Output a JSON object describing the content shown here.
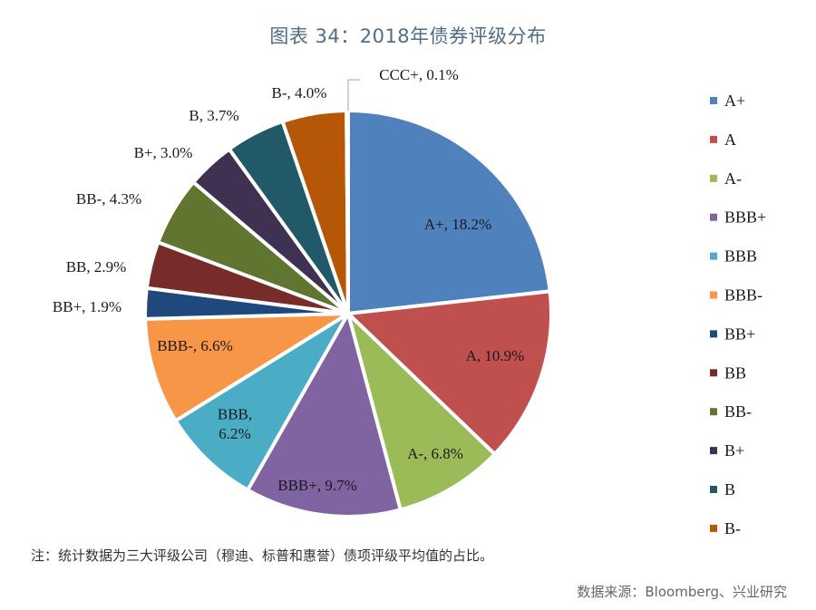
{
  "title": "图表 34：2018年债券评级分布",
  "note": "注：统计数据为三大评级公司（穆迪、标普和惠誉）债项评级平均值的占比。",
  "source": "数据来源：Bloomberg、兴业研究",
  "chart_data": {
    "type": "pie",
    "title": "图表 34：2018年债券评级分布",
    "legend_position": "right",
    "slices": [
      {
        "label": "A+",
        "value": 18.2,
        "display": "A+, 18.2%",
        "color": "#4f81bd"
      },
      {
        "label": "A",
        "value": 10.9,
        "display": "A, 10.9%",
        "color": "#c0504d"
      },
      {
        "label": "A-",
        "value": 6.8,
        "display": "A-, 6.8%",
        "color": "#9bbb59"
      },
      {
        "label": "BBB+",
        "value": 9.7,
        "display": "BBB+, 9.7%",
        "color": "#8064a2"
      },
      {
        "label": "BBB",
        "value": 6.2,
        "display": "BBB,\n6.2%",
        "color": "#4bacc6"
      },
      {
        "label": "BBB-",
        "value": 6.6,
        "display": "BBB-, 6.6%",
        "color": "#f79646"
      },
      {
        "label": "BB+",
        "value": 1.9,
        "display": "BB+, 1.9%",
        "color": "#1f497d"
      },
      {
        "label": "BB",
        "value": 2.9,
        "display": "BB, 2.9%",
        "color": "#772c2a"
      },
      {
        "label": "BB-",
        "value": 4.3,
        "display": "BB-, 4.3%",
        "color": "#5f7530"
      },
      {
        "label": "B+",
        "value": 3.0,
        "display": "B+, 3.0%",
        "color": "#3f3151"
      },
      {
        "label": "B",
        "value": 3.7,
        "display": "B, 3.7%",
        "color": "#215968"
      },
      {
        "label": "B-",
        "value": 4.0,
        "display": "B-, 4.0%",
        "color": "#b65708"
      },
      {
        "label": "CCC+",
        "value": 0.1,
        "display": "CCC+, 0.1%",
        "color": "#4f81bd"
      }
    ],
    "legend": [
      "A+",
      "A",
      "A-",
      "BBB+",
      "BBB",
      "BBB-",
      "BB+",
      "BB",
      "BB-",
      "B+",
      "B",
      "B-"
    ]
  }
}
